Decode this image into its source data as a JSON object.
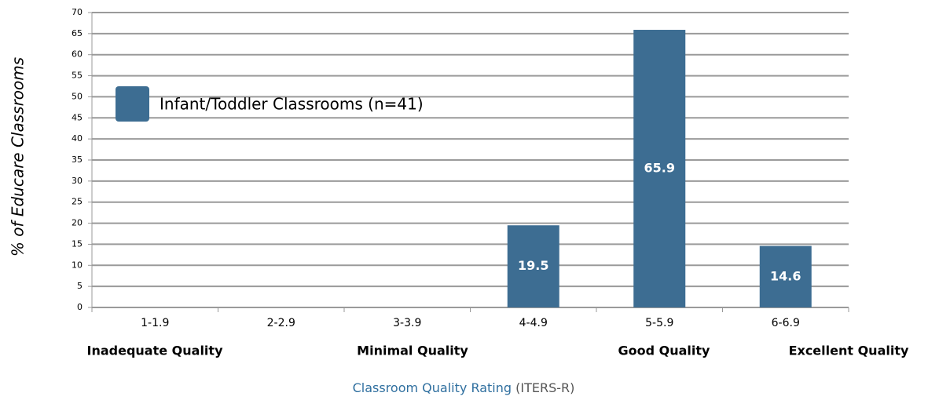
{
  "chart_data": {
    "type": "bar",
    "y_label": "% of Educare Classrooms",
    "x_label": "Classroom Quality Rating",
    "x_label_note": "(ITERS-R)",
    "categories": [
      "1-1.9",
      "2-2.9",
      "3-3.9",
      "4-4.9",
      "5-5.9",
      "6-6.9"
    ],
    "series": [
      {
        "name": "Infant/Toddler Classrooms (n=41)",
        "color": "#3d6d92",
        "values": [
          null,
          null,
          null,
          19.5,
          65.9,
          14.6
        ]
      }
    ],
    "annotations": [
      "Inadequate Quality",
      "Minimal Quality",
      "Good Quality",
      "Excellent Quality"
    ],
    "ylim": [
      0,
      70
    ],
    "yticks": [
      0,
      5,
      10,
      15,
      20,
      25,
      30,
      35,
      40,
      45,
      50,
      55,
      60,
      65,
      70
    ],
    "grid": true,
    "legend": "upper left"
  }
}
